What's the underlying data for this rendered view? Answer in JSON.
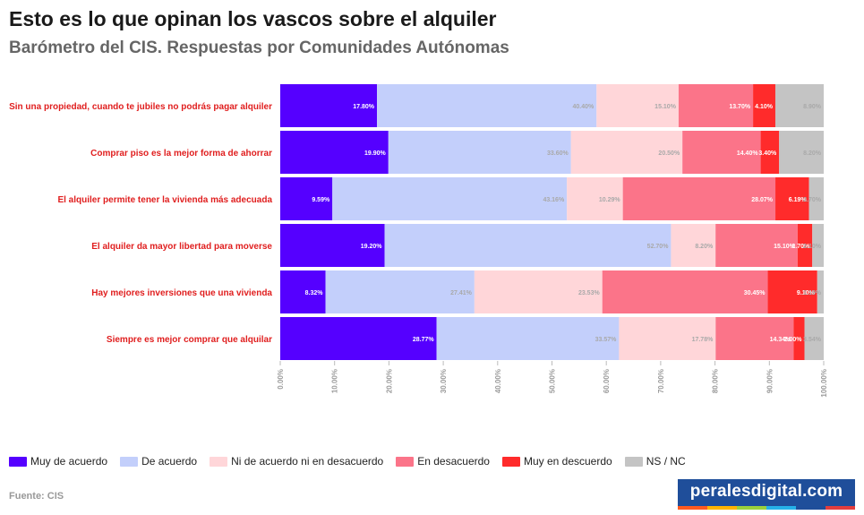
{
  "header": {
    "title": "Esto es lo que opinan los vascos sobre el alquiler",
    "subtitle": "Barómetro del CIS. Respuestas por Comunidades Autónomas"
  },
  "footer": {
    "source": "Fuente: CIS",
    "brand": "peralesdigital.com",
    "brand_stripe_colors": [
      "#ff5a1f",
      "#ffb400",
      "#9bd13b",
      "#25b1e8",
      "#1f4e9a",
      "#e33d3d"
    ]
  },
  "chart_data": {
    "type": "bar",
    "orientation": "horizontal",
    "stacked": true,
    "normalized": true,
    "categories": [
      "Sin una propiedad, cuando te jubiles no podrás pagar alquiler",
      "Comprar piso es la mejor forma de ahorrar",
      "El alquiler permite tener la vivienda más adecuada",
      "El alquiler da mayor libertad para moverse",
      "Hay mejores inversiones que una vivienda",
      "Siempre es mejor comprar que alquilar"
    ],
    "series": [
      {
        "name": "Muy de acuerdo",
        "color": "#5500ff",
        "values": [
          17.8,
          19.9,
          9.59,
          19.2,
          8.32,
          28.77
        ],
        "labels": [
          "17.80%",
          "19.90%",
          "9.59%",
          "19.20%",
          "8.32%",
          "28.77%"
        ]
      },
      {
        "name": "De acuerdo",
        "color": "#c3cffb",
        "values": [
          40.4,
          33.6,
          43.16,
          52.7,
          27.41,
          33.57
        ],
        "labels": [
          "40.40%",
          "33.60%",
          "43.16%",
          "52.70%",
          "27.41%",
          "33.57%"
        ]
      },
      {
        "name": "Ni de acuerdo ni en desacuerdo",
        "color": "#ffd6d9",
        "values": [
          15.1,
          20.5,
          10.29,
          8.2,
          23.53,
          17.78
        ],
        "labels": [
          "15.10%",
          "20.50%",
          "10.29%",
          "8.20%",
          "23.53%",
          "17.78%"
        ]
      },
      {
        "name": "En desacuerdo",
        "color": "#fb7489",
        "values": [
          13.7,
          14.4,
          28.07,
          15.1,
          30.45,
          14.34
        ],
        "labels": [
          "13.70%",
          "14.40%",
          "28.07%",
          "15.10%",
          "30.45%",
          "14.34%"
        ]
      },
      {
        "name": "Muy en descuerdo",
        "color": "#ff2b2b",
        "values": [
          4.1,
          3.4,
          6.19,
          2.7,
          9.1,
          2.0
        ],
        "labels": [
          "4.10%",
          "3.40%",
          "6.19%",
          "2.70%",
          "9.10%",
          "2.00%"
        ]
      },
      {
        "name": "NS / NC",
        "color": "#c4c4c4",
        "values": [
          8.9,
          8.2,
          2.7,
          2.1,
          1.19,
          3.54
        ],
        "labels": [
          "8.90%",
          "8.20%",
          "2.70%",
          "2.10%",
          "1.19%",
          "3.54%"
        ]
      }
    ],
    "xlim": [
      0,
      100
    ],
    "x_ticks": [
      "0.00%",
      "10.00%",
      "20.00%",
      "30.00%",
      "40.00%",
      "50.00%",
      "60.00%",
      "70.00%",
      "80.00%",
      "90.00%",
      "100.00%"
    ],
    "xlabel": "",
    "ylabel": "",
    "category_label_color": "#e01e1e",
    "grid": false,
    "legend_position": "bottom"
  }
}
